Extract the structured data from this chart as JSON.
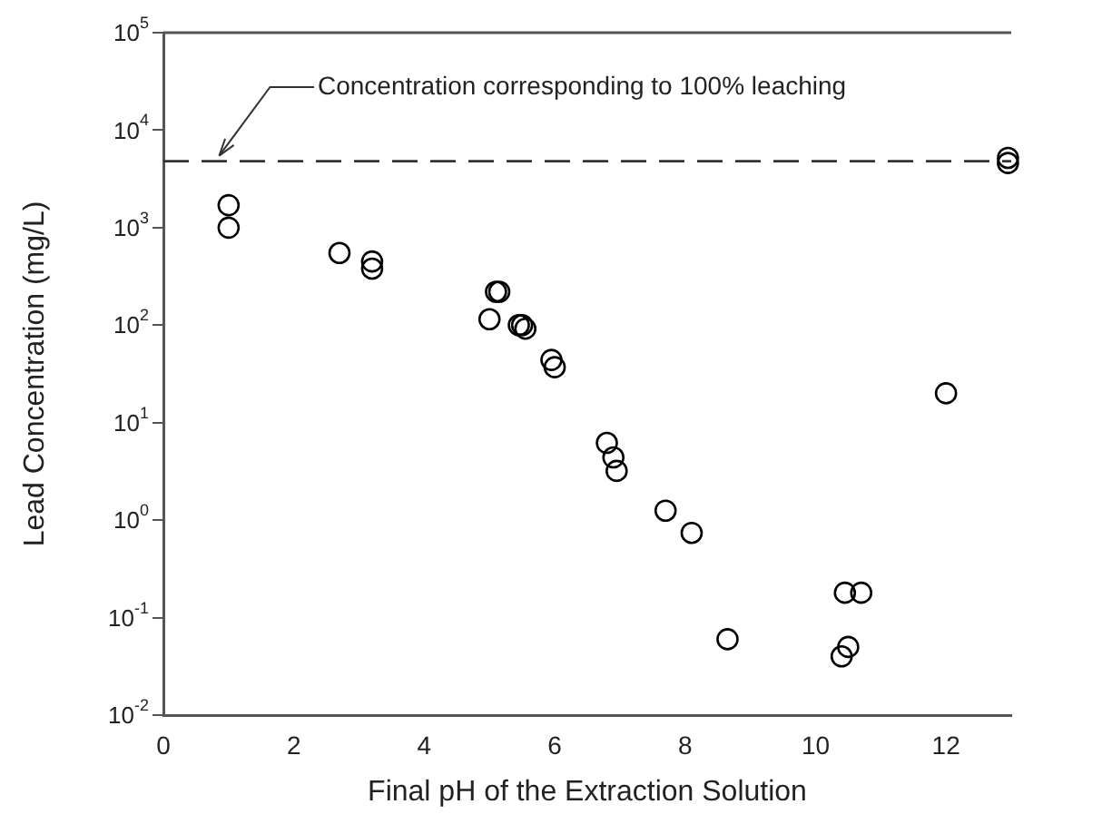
{
  "chart_data": {
    "type": "scatter",
    "xlabel": "Final pH of the Extraction Solution",
    "ylabel": "Lead Concentration (mg/L)",
    "x": [
      1.0,
      1.0,
      2.7,
      3.2,
      3.2,
      5.1,
      5.15,
      5.0,
      5.45,
      5.5,
      5.55,
      5.95,
      6.0,
      6.8,
      6.9,
      6.95,
      7.7,
      8.1,
      8.65,
      10.45,
      10.7,
      10.5,
      10.4,
      12.0,
      12.95,
      12.95
    ],
    "series": [
      {
        "color": "#000000",
        "values": [
          1700,
          1000,
          550,
          450,
          380,
          220,
          220,
          115,
          100,
          100,
          92,
          44,
          37,
          6.2,
          4.4,
          3.2,
          1.25,
          0.74,
          0.06,
          0.18,
          0.18,
          0.05,
          0.04,
          20,
          5200,
          4600
        ]
      }
    ],
    "log": "y",
    "marker": "circle",
    "xlim": [
      0,
      13
    ],
    "xticks": [
      0,
      2,
      4,
      6,
      8,
      10,
      12
    ],
    "ylim": [
      0.01,
      100000
    ],
    "yticks": [
      {
        "value": 0.01,
        "label": "10$^{-2}$"
      },
      {
        "value": 0.1,
        "label": "10$^{-1}$"
      },
      {
        "value": 1,
        "label": "10$^{0}$"
      },
      {
        "value": 10,
        "label": "10$^{1}$"
      },
      {
        "value": 100,
        "label": "10$^{2}$"
      },
      {
        "value": 1000,
        "label": "10$^{3}$"
      },
      {
        "value": 10000,
        "label": "10$^{4}$"
      },
      {
        "value": 100000,
        "label": "10$^{5}$"
      }
    ],
    "ref_lines": [
      {
        "axis": "y",
        "value": 4800,
        "color": "#333333",
        "line_style": "dashed"
      }
    ],
    "annotations": [
      {
        "text": "Concentration corresponding to 100% leaching",
        "x": 0.8,
        "y": 4800
      }
    ],
    "grid": false,
    "legend": false
  }
}
